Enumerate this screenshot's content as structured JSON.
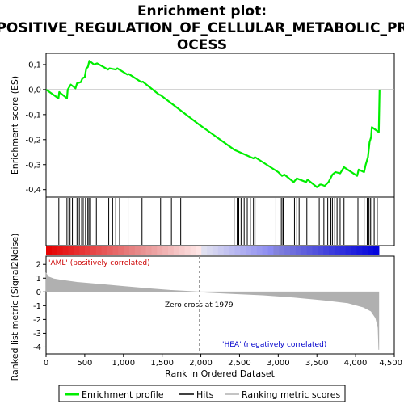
{
  "chart_data": {
    "type": "line",
    "title_lines": [
      "Enrichment plot:",
      "POSITIVE_REGULATION_OF_CELLULAR_METABOLIC_PR",
      "OCESS"
    ],
    "xlabel": "Rank in Ordered Dataset",
    "ylabel_top": "Enrichment score (ES)",
    "ylabel_bottom": "Ranked list metric (Signal2Noise)",
    "x_ticks": [
      0,
      500,
      1000,
      1500,
      2000,
      2500,
      3000,
      3500,
      4000,
      4500
    ],
    "x_tick_labels": [
      "0",
      "500",
      "1,000",
      "1,500",
      "2,000",
      "2,500",
      "3,000",
      "3,500",
      "4,000",
      "4,500"
    ],
    "xlim": [
      0,
      4500
    ],
    "es_ylim": [
      -0.43,
      0.145
    ],
    "es_ticks": [
      0.1,
      0.0,
      -0.1,
      -0.2,
      -0.3,
      -0.4
    ],
    "es_tick_labels": [
      "0,1",
      "0,0",
      "-0,1",
      "-0,2",
      "-0,3",
      "-0,4"
    ],
    "metric_ylim": [
      -4.5,
      2.6
    ],
    "metric_ticks": [
      2,
      1,
      0,
      -1,
      -2,
      -3,
      -4
    ],
    "metric_tick_labels": [
      "2",
      "1",
      "0",
      "-1",
      "-2",
      "-3",
      "-4"
    ],
    "enrichment_profile": [
      [
        0,
        0.0
      ],
      [
        160,
        -0.035
      ],
      [
        170,
        -0.01
      ],
      [
        270,
        -0.035
      ],
      [
        280,
        0.0
      ],
      [
        300,
        0.01
      ],
      [
        320,
        0.02
      ],
      [
        380,
        0.005
      ],
      [
        400,
        0.025
      ],
      [
        450,
        0.03
      ],
      [
        470,
        0.045
      ],
      [
        500,
        0.05
      ],
      [
        520,
        0.085
      ],
      [
        540,
        0.09
      ],
      [
        560,
        0.115
      ],
      [
        620,
        0.1
      ],
      [
        660,
        0.105
      ],
      [
        800,
        0.08
      ],
      [
        820,
        0.085
      ],
      [
        900,
        0.08
      ],
      [
        920,
        0.085
      ],
      [
        1050,
        0.06
      ],
      [
        1070,
        0.062
      ],
      [
        1230,
        0.03
      ],
      [
        1250,
        0.032
      ],
      [
        1460,
        -0.02
      ],
      [
        1480,
        -0.022
      ],
      [
        1979,
        -0.14
      ],
      [
        2430,
        -0.24
      ],
      [
        2680,
        -0.275
      ],
      [
        2700,
        -0.27
      ],
      [
        3000,
        -0.33
      ],
      [
        3050,
        -0.345
      ],
      [
        3080,
        -0.34
      ],
      [
        3200,
        -0.37
      ],
      [
        3240,
        -0.355
      ],
      [
        3360,
        -0.37
      ],
      [
        3380,
        -0.36
      ],
      [
        3500,
        -0.39
      ],
      [
        3540,
        -0.38
      ],
      [
        3560,
        -0.38
      ],
      [
        3600,
        -0.385
      ],
      [
        3650,
        -0.37
      ],
      [
        3700,
        -0.34
      ],
      [
        3740,
        -0.33
      ],
      [
        3800,
        -0.335
      ],
      [
        3850,
        -0.31
      ],
      [
        4020,
        -0.345
      ],
      [
        4040,
        -0.32
      ],
      [
        4110,
        -0.33
      ],
      [
        4130,
        -0.3
      ],
      [
        4160,
        -0.27
      ],
      [
        4180,
        -0.21
      ],
      [
        4200,
        -0.19
      ],
      [
        4210,
        -0.15
      ],
      [
        4300,
        -0.17
      ],
      [
        4310,
        0.0
      ]
    ],
    "hits": [
      165,
      270,
      295,
      310,
      340,
      400,
      430,
      460,
      480,
      510,
      540,
      555,
      575,
      650,
      810,
      860,
      900,
      950,
      1060,
      1240,
      1480,
      1620,
      1740,
      2430,
      2470,
      2490,
      2520,
      2560,
      2600,
      2640,
      2680,
      2700,
      2970,
      3040,
      3060,
      3070,
      3210,
      3240,
      3270,
      3370,
      3530,
      3590,
      3640,
      3680,
      3700,
      3730,
      3760,
      3800,
      3850,
      4030,
      4110,
      4150,
      4170,
      4190,
      4210,
      4240,
      4280
    ],
    "metric_curve": [
      [
        0,
        1.35
      ],
      [
        30,
        1.1
      ],
      [
        100,
        0.95
      ],
      [
        200,
        0.85
      ],
      [
        400,
        0.7
      ],
      [
        700,
        0.55
      ],
      [
        1000,
        0.4
      ],
      [
        1300,
        0.25
      ],
      [
        1600,
        0.12
      ],
      [
        1979,
        0.0
      ],
      [
        2400,
        -0.12
      ],
      [
        2800,
        -0.22
      ],
      [
        3200,
        -0.38
      ],
      [
        3600,
        -0.6
      ],
      [
        3900,
        -0.8
      ],
      [
        4100,
        -1.1
      ],
      [
        4200,
        -1.4
      ],
      [
        4260,
        -1.9
      ],
      [
        4290,
        -2.6
      ],
      [
        4300,
        -4.2
      ]
    ],
    "zero_cross": 1979,
    "zero_cross_label": "Zero cross at 1979",
    "pos_label": "'AML' (positively correlated)",
    "neg_label": "'HEA' (negatively correlated)",
    "legend": [
      "Enrichment profile",
      "Hits",
      "Ranking metric scores"
    ],
    "colors": {
      "profile": "#00ee00",
      "hits": "#000000",
      "metric": "#b0b0b0",
      "pos": "#cc0000",
      "neg": "#0000cc"
    }
  }
}
